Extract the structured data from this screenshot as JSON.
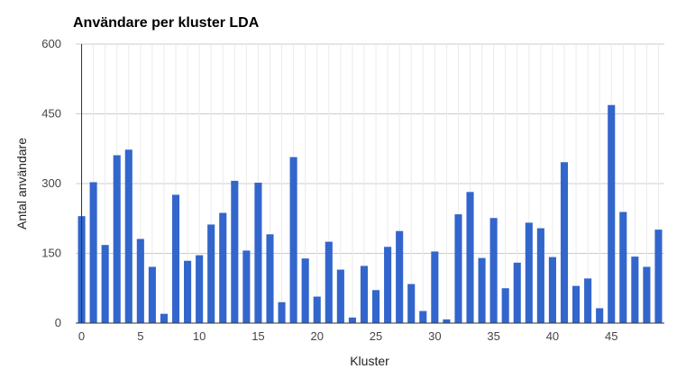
{
  "chart_data": {
    "type": "bar",
    "title": "Användare per kluster LDA",
    "xlabel": "Kluster",
    "ylabel": "Antal användare",
    "ylim": [
      0,
      600
    ],
    "xlim": [
      -0.5,
      49.5
    ],
    "yticks": [
      0,
      150,
      300,
      450,
      600
    ],
    "xticks": [
      0,
      5,
      10,
      15,
      20,
      25,
      30,
      35,
      40,
      45
    ],
    "grid": true,
    "bar_color": "#3366cc",
    "x": [
      0,
      1,
      2,
      3,
      4,
      5,
      6,
      7,
      8,
      9,
      10,
      11,
      12,
      13,
      14,
      15,
      16,
      17,
      18,
      19,
      20,
      21,
      22,
      23,
      24,
      25,
      26,
      27,
      28,
      29,
      30,
      31,
      32,
      33,
      34,
      35,
      36,
      37,
      38,
      39,
      40,
      41,
      42,
      43,
      44,
      45,
      46,
      47,
      48,
      49
    ],
    "values": [
      230,
      303,
      168,
      361,
      373,
      181,
      121,
      20,
      276,
      134,
      146,
      212,
      237,
      306,
      156,
      302,
      191,
      45,
      357,
      139,
      57,
      175,
      115,
      12,
      123,
      71,
      164,
      198,
      84,
      26,
      154,
      8,
      234,
      282,
      140,
      226,
      75,
      130,
      216,
      204,
      142,
      346,
      80,
      96,
      32,
      469,
      239,
      143,
      121,
      201
    ]
  }
}
